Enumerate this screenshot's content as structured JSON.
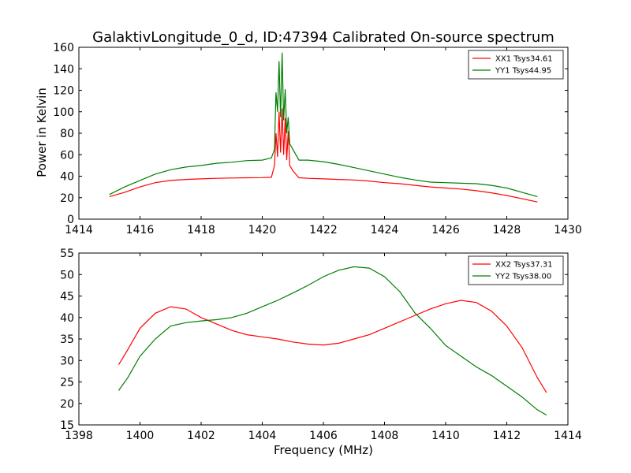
{
  "figure": {
    "title": "GalaktivLongitude_0_d, ID:47394 Calibrated On-source spectrum",
    "xlabel": "Frequency (MHz)",
    "colors": {
      "red": "#ff0000",
      "green": "#007f00"
    }
  },
  "chart_data": [
    {
      "type": "line",
      "title": "GalaktivLongitude_0_d, ID:47394 Calibrated On-source spectrum",
      "xlabel": "",
      "ylabel": "Power in Kelvin",
      "xlim": [
        1414,
        1430
      ],
      "ylim": [
        0,
        160
      ],
      "xticks": [
        1414,
        1416,
        1418,
        1420,
        1422,
        1424,
        1426,
        1428,
        1430
      ],
      "yticks": [
        0,
        20,
        40,
        60,
        80,
        100,
        120,
        140,
        160
      ],
      "grid": false,
      "legend": "top-right",
      "series": [
        {
          "name": "XX1 Tsys34.61",
          "color": "#ff0000",
          "x": [
            1415,
            1415.5,
            1416,
            1416.5,
            1417,
            1417.5,
            1418,
            1418.5,
            1419,
            1419.5,
            1420,
            1420.3,
            1420.4,
            1420.45,
            1420.5,
            1420.55,
            1420.6,
            1420.65,
            1420.7,
            1420.75,
            1420.8,
            1420.85,
            1420.9,
            1421,
            1421.2,
            1421.5,
            1422,
            1422.5,
            1423,
            1423.5,
            1424,
            1424.5,
            1425,
            1425.5,
            1426,
            1426.5,
            1427,
            1427.5,
            1428,
            1428.5,
            1429
          ],
          "values": [
            21,
            25,
            30,
            34,
            36,
            37,
            37.5,
            38,
            38.3,
            38.5,
            38.7,
            39,
            50,
            80,
            58,
            100,
            62,
            103,
            60,
            94,
            55,
            82,
            50,
            45,
            38.5,
            38,
            37.5,
            37,
            36.5,
            35.5,
            34,
            33,
            31.5,
            30,
            29,
            28,
            26.5,
            24.5,
            22,
            19,
            16
          ]
        },
        {
          "name": "YY1 Tsys44.95",
          "color": "#007f00",
          "x": [
            1415,
            1415.5,
            1416,
            1416.5,
            1417,
            1417.5,
            1418,
            1418.5,
            1419,
            1419.5,
            1420,
            1420.3,
            1420.4,
            1420.45,
            1420.5,
            1420.55,
            1420.6,
            1420.65,
            1420.7,
            1420.75,
            1420.8,
            1420.85,
            1420.9,
            1421,
            1421.2,
            1421.5,
            1422,
            1422.5,
            1423,
            1423.5,
            1424,
            1424.5,
            1425,
            1425.5,
            1426,
            1426.5,
            1427,
            1427.5,
            1428,
            1428.5,
            1429
          ],
          "values": [
            23,
            30,
            36,
            42,
            46,
            48.5,
            50,
            52,
            53,
            54.5,
            55,
            57,
            65,
            118,
            100,
            147,
            95,
            155,
            92,
            121,
            80,
            95,
            70,
            65,
            55,
            55,
            53.5,
            51,
            48,
            45,
            42,
            39,
            36.5,
            34.5,
            34,
            33.5,
            33,
            31.5,
            29,
            25,
            21
          ]
        }
      ]
    },
    {
      "type": "line",
      "title": "",
      "xlabel": "Frequency (MHz)",
      "ylabel": "",
      "xlim": [
        1398,
        1414
      ],
      "ylim": [
        15,
        55
      ],
      "xticks": [
        1398,
        1400,
        1402,
        1404,
        1406,
        1408,
        1410,
        1412,
        1414
      ],
      "yticks": [
        15,
        20,
        25,
        30,
        35,
        40,
        45,
        50,
        55
      ],
      "grid": false,
      "legend": "top-right",
      "series": [
        {
          "name": "XX2 Tsys37.31",
          "color": "#ff0000",
          "x": [
            1399.3,
            1399.6,
            1400,
            1400.5,
            1401,
            1401.5,
            1402,
            1402.5,
            1403,
            1403.5,
            1404,
            1404.5,
            1405,
            1405.5,
            1406,
            1406.5,
            1407,
            1407.5,
            1408,
            1408.5,
            1409,
            1409.5,
            1410,
            1410.5,
            1411,
            1411.5,
            1412,
            1412.5,
            1413,
            1413.3
          ],
          "values": [
            29,
            32.5,
            37.5,
            41,
            42.5,
            42,
            40,
            38.5,
            37,
            36,
            35.5,
            35,
            34.3,
            33.8,
            33.6,
            34,
            35,
            36,
            37.5,
            39,
            40.5,
            42,
            43.2,
            44,
            43.5,
            41.5,
            38,
            33,
            26,
            22.5
          ]
        },
        {
          "name": "YY2 Tsys38.00",
          "color": "#007f00",
          "x": [
            1399.3,
            1399.6,
            1400,
            1400.5,
            1401,
            1401.5,
            1402,
            1402.5,
            1403,
            1403.5,
            1404,
            1404.5,
            1405,
            1405.5,
            1406,
            1406.5,
            1407,
            1407.5,
            1408,
            1408.5,
            1409,
            1409.5,
            1410,
            1410.5,
            1411,
            1411.5,
            1412,
            1412.5,
            1413,
            1413.3
          ],
          "values": [
            23,
            26,
            31,
            35,
            38,
            38.8,
            39.2,
            39.5,
            40,
            41,
            42.5,
            44,
            45.7,
            47.5,
            49.5,
            51,
            51.8,
            51.5,
            49.5,
            46,
            41,
            37.5,
            33.5,
            31,
            28.5,
            26.5,
            24,
            21.5,
            18.5,
            17.3
          ]
        }
      ]
    }
  ]
}
